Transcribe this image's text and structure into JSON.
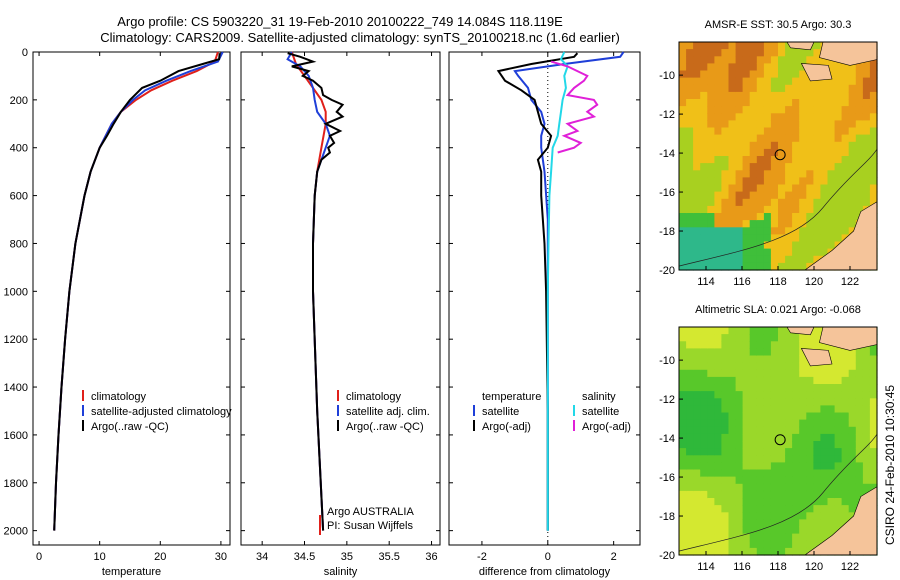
{
  "header": {
    "line1": "Argo profile: CS 5903220_31 19-Feb-2010 20100222_749 14.084S 118.119E",
    "line2": "Climatology: CARS2009. Satellite-adjusted climatology: synTS_20100218.nc (1.6d earlier)"
  },
  "credit": "CSIRO 24-Feb-2010 10:30:45",
  "colors": {
    "climatology": "#e0201a",
    "satellite": "#1f3fd8",
    "argo": "#000000",
    "sat_salinity": "#22d8e8",
    "argo_salinity_adj": "#e020d8"
  },
  "chart_data": [
    {
      "type": "line",
      "id": "temperature",
      "xlabel": "temperature",
      "ylabel": "",
      "xlim": [
        -1,
        31.5
      ],
      "ylim": [
        2060,
        0
      ],
      "xticks": [
        "0",
        "10",
        "20",
        "30"
      ],
      "yticks": [
        "0",
        "200",
        "400",
        "600",
        "800",
        "1000",
        "1200",
        "1400",
        "1600",
        "1800",
        "2000"
      ],
      "legend": [
        "climatology",
        "satellite-adjusted climatology",
        "Argo(..raw -QC)"
      ],
      "series": [
        {
          "name": "climatology",
          "depth": [
            0,
            40,
            80,
            120,
            160,
            200,
            250,
            300,
            350,
            400,
            500,
            600,
            800,
            1000,
            1200,
            1400,
            1600,
            1800,
            2000
          ],
          "values": [
            29.5,
            29,
            26,
            22,
            18.5,
            16,
            13.5,
            12,
            11,
            10,
            8.5,
            7.5,
            6,
            5,
            4.3,
            3.7,
            3.2,
            2.8,
            2.5
          ]
        },
        {
          "name": "satellite-adjusted climatology",
          "depth": [
            0,
            40,
            80,
            120,
            160,
            200,
            250,
            300,
            350,
            400,
            500,
            600,
            800,
            1000,
            1200,
            1400,
            1600,
            1800,
            2000
          ],
          "values": [
            30.3,
            29.5,
            25,
            21,
            17.5,
            15.5,
            13.5,
            12,
            11,
            10,
            8.5,
            7.5,
            6,
            5,
            4.3,
            3.7,
            3.2,
            2.8,
            2.5
          ]
        },
        {
          "name": "Argo(..raw -QC)",
          "depth": [
            5,
            30,
            50,
            80,
            120,
            150,
            200,
            250,
            300,
            350,
            400,
            500,
            600,
            800,
            1000,
            1200,
            1400,
            1600,
            1800,
            2000
          ],
          "values": [
            29.8,
            29.7,
            27,
            23,
            20,
            17,
            15,
            13.5,
            12.3,
            11.2,
            10,
            8.5,
            7.5,
            6,
            5,
            4.3,
            3.7,
            3.2,
            2.8,
            2.5
          ]
        }
      ]
    },
    {
      "type": "line",
      "id": "salinity",
      "xlabel": "salinity",
      "ylabel": "",
      "xlim": [
        33.75,
        36.1
      ],
      "ylim": [
        2060,
        0
      ],
      "xticks": [
        "34",
        "34.5",
        "35",
        "35.5",
        "36"
      ],
      "legend": [
        "climatology",
        "satellite adj. clim.",
        "Argo(..raw -QC)"
      ],
      "annotation": [
        "Argo AUSTRALIA",
        "PI: Susan Wijffels"
      ],
      "series": [
        {
          "name": "climatology",
          "depth": [
            0,
            50,
            100,
            150,
            200,
            250,
            300,
            400,
            500,
            600,
            800,
            1000,
            1500,
            2000
          ],
          "values": [
            34.35,
            34.4,
            34.5,
            34.6,
            34.7,
            34.75,
            34.75,
            34.7,
            34.65,
            34.62,
            34.6,
            34.6,
            34.65,
            34.72
          ]
        },
        {
          "name": "satellite adj. clim.",
          "depth": [
            0,
            30,
            60,
            100,
            150,
            200,
            250,
            300,
            350,
            400,
            500,
            600,
            800,
            1000,
            1500,
            2000
          ],
          "values": [
            34.35,
            34.3,
            34.45,
            34.55,
            34.6,
            34.62,
            34.65,
            34.75,
            34.8,
            34.75,
            34.65,
            34.62,
            34.6,
            34.6,
            34.65,
            34.72
          ]
        },
        {
          "name": "Argo(..raw -QC)",
          "depth": [
            5,
            20,
            40,
            60,
            80,
            100,
            120,
            150,
            180,
            200,
            220,
            250,
            270,
            300,
            330,
            350,
            380,
            400,
            420,
            450,
            500,
            600,
            800,
            1000,
            1500,
            2000
          ],
          "values": [
            34.3,
            34.45,
            34.6,
            34.35,
            34.55,
            34.48,
            34.6,
            34.7,
            34.72,
            34.82,
            34.95,
            34.88,
            34.95,
            34.75,
            34.92,
            34.8,
            34.85,
            34.78,
            34.8,
            34.7,
            34.65,
            34.62,
            34.6,
            34.6,
            34.65,
            34.72
          ]
        }
      ]
    },
    {
      "type": "line",
      "id": "difference",
      "xlabel": "difference from climatology",
      "ylabel": "",
      "xlim": [
        -3,
        2.8
      ],
      "ylim": [
        2060,
        0
      ],
      "xticks": [
        "-2",
        "0",
        "2"
      ],
      "legend": [
        "temperature",
        "satellite",
        "Argo(-adj)",
        "salinity",
        "satellite",
        "Argo(-adj)"
      ],
      "series": [
        {
          "name": "temperature satellite",
          "depth": [
            0,
            20,
            50,
            80,
            100,
            150,
            200,
            250,
            300,
            350,
            400,
            500,
            700,
            1000,
            1500,
            2000
          ],
          "values": [
            2.3,
            2.2,
            0.5,
            -1,
            -0.9,
            -0.6,
            -0.5,
            -0.2,
            -0.1,
            -0.2,
            -0.2,
            -0.1,
            0,
            0,
            0,
            0
          ]
        },
        {
          "name": "temperature Argo(-adj)",
          "depth": [
            5,
            20,
            50,
            80,
            120,
            160,
            200,
            250,
            300,
            350,
            400,
            450,
            500,
            600,
            800,
            1000,
            1500,
            2000
          ],
          "values": [
            0.9,
            0.8,
            -0.5,
            -1.5,
            -1.3,
            -0.8,
            -0.4,
            -0.3,
            -0.2,
            0.1,
            0,
            -0.3,
            -0.2,
            -0.2,
            -0.1,
            -0.05,
            0,
            0
          ]
        },
        {
          "name": "salinity satellite",
          "depth": [
            0,
            30,
            60,
            100,
            150,
            200,
            250,
            300,
            350,
            400,
            500,
            600,
            800,
            1000,
            1500,
            2000
          ],
          "values": [
            0.5,
            0.4,
            0.6,
            0.5,
            0.55,
            0.45,
            0.4,
            0.35,
            0.3,
            0.15,
            0.1,
            0.05,
            0.02,
            0,
            0,
            0
          ]
        },
        {
          "name": "salinity Argo(-adj)",
          "depth": [
            40,
            60,
            80,
            100,
            120,
            150,
            180,
            200,
            220,
            250,
            270,
            300,
            330,
            350,
            380,
            400,
            420
          ],
          "values": [
            0.1,
            0.6,
            0.9,
            1.2,
            1.1,
            0.8,
            0.6,
            1.4,
            1.5,
            1.2,
            1.4,
            0.6,
            0.9,
            0.5,
            1.0,
            0.8,
            0.3
          ]
        }
      ]
    },
    {
      "type": "heatmap",
      "id": "sst_map",
      "title": "AMSR-E SST: 30.5  Argo: 30.3",
      "xticks": [
        "114",
        "116",
        "118",
        "120",
        "122"
      ],
      "yticks": [
        "-10",
        "-12",
        "-14",
        "-16",
        "-18",
        "-20"
      ],
      "xlim": [
        112.5,
        123.5
      ],
      "ylim": [
        -20,
        -8.3
      ],
      "marker": {
        "lon": 118.119,
        "lat": -14.084
      }
    },
    {
      "type": "heatmap",
      "id": "sla_map",
      "title": "Altimetric SLA: 0.021  Argo: -0.068",
      "xticks": [
        "114",
        "116",
        "118",
        "120",
        "122"
      ],
      "yticks": [
        "-10",
        "-12",
        "-14",
        "-16",
        "-18",
        "-20"
      ],
      "xlim": [
        112.5,
        123.5
      ],
      "ylim": [
        -20,
        -8.3
      ],
      "marker": {
        "lon": 118.119,
        "lat": -14.084
      }
    }
  ]
}
